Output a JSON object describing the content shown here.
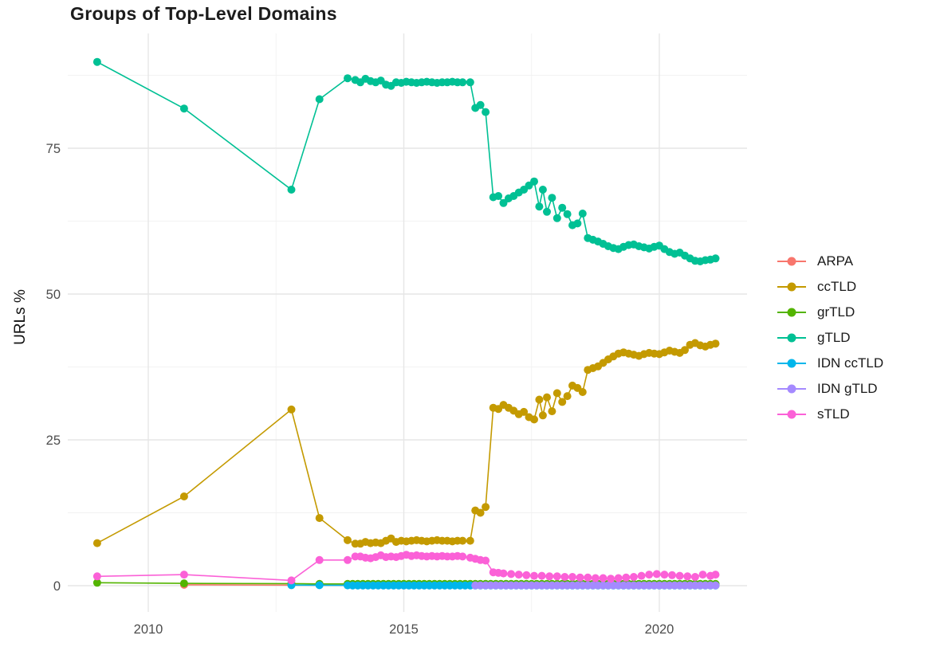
{
  "title": "Groups of Top-Level Domains",
  "colors": {
    "grid_major": "#e6e6e6",
    "grid_minor": "#f2f2f2",
    "axis_text": "#4d4d4d",
    "title_text": "#1c1c1c"
  },
  "chart_data": {
    "type": "line",
    "title": "Groups of Top-Level Domains",
    "xlabel": "",
    "ylabel": "URLs %",
    "x_ticks": [
      2010,
      2015,
      2020
    ],
    "x_minor_ticks": [
      2012.5,
      2017.5
    ],
    "y_ticks": [
      0,
      25,
      50,
      75
    ],
    "y_minor_ticks": [
      12.5,
      37.5,
      62.5,
      87.5
    ],
    "xlim": [
      2008.4,
      2021.7
    ],
    "ylim": [
      -4.6,
      94.6
    ],
    "grid": true,
    "legend_position": "right",
    "series": [
      {
        "name": "ARPA",
        "color": "#F8766D",
        "points": [
          [
            2010.7,
            0.15
          ],
          [
            2012.8,
            0.1
          ]
        ],
        "fill": {
          "from": 2014.0,
          "to": 2021.1,
          "step": 0.1,
          "value": 0.05
        }
      },
      {
        "name": "ccTLD",
        "color": "#C49A00",
        "points": [
          [
            2009.0,
            7.3
          ],
          [
            2010.7,
            15.3
          ],
          [
            2012.8,
            30.2
          ],
          [
            2013.35,
            11.6
          ],
          [
            2013.9,
            7.8
          ],
          [
            2014.05,
            7.2
          ],
          [
            2014.15,
            7.2
          ],
          [
            2014.25,
            7.5
          ],
          [
            2014.35,
            7.3
          ],
          [
            2014.45,
            7.4
          ],
          [
            2014.55,
            7.3
          ],
          [
            2014.65,
            7.7
          ],
          [
            2014.75,
            8.1
          ],
          [
            2014.85,
            7.5
          ],
          [
            2014.95,
            7.7
          ],
          [
            2015.05,
            7.6
          ],
          [
            2015.15,
            7.7
          ],
          [
            2015.25,
            7.8
          ],
          [
            2015.35,
            7.7
          ],
          [
            2015.45,
            7.6
          ],
          [
            2015.55,
            7.7
          ],
          [
            2015.65,
            7.8
          ],
          [
            2015.75,
            7.7
          ],
          [
            2015.85,
            7.7
          ],
          [
            2015.95,
            7.6
          ],
          [
            2016.05,
            7.7
          ],
          [
            2016.15,
            7.7
          ],
          [
            2016.3,
            7.7
          ],
          [
            2016.4,
            12.9
          ],
          [
            2016.5,
            12.5
          ],
          [
            2016.6,
            13.5
          ],
          [
            2016.75,
            30.5
          ],
          [
            2016.85,
            30.3
          ],
          [
            2016.95,
            31.0
          ],
          [
            2017.05,
            30.5
          ],
          [
            2017.15,
            30.0
          ],
          [
            2017.25,
            29.4
          ],
          [
            2017.35,
            29.8
          ],
          [
            2017.45,
            28.9
          ],
          [
            2017.55,
            28.5
          ],
          [
            2017.65,
            31.9
          ],
          [
            2017.72,
            29.2
          ],
          [
            2017.8,
            32.3
          ],
          [
            2017.9,
            29.9
          ],
          [
            2018.0,
            33.0
          ],
          [
            2018.1,
            31.5
          ],
          [
            2018.2,
            32.5
          ],
          [
            2018.3,
            34.3
          ],
          [
            2018.4,
            33.9
          ],
          [
            2018.5,
            33.2
          ],
          [
            2018.6,
            37.0
          ],
          [
            2018.7,
            37.3
          ],
          [
            2018.8,
            37.6
          ],
          [
            2018.9,
            38.2
          ],
          [
            2019.0,
            38.8
          ],
          [
            2019.1,
            39.3
          ],
          [
            2019.2,
            39.8
          ],
          [
            2019.3,
            40.0
          ],
          [
            2019.4,
            39.8
          ],
          [
            2019.5,
            39.6
          ],
          [
            2019.6,
            39.4
          ],
          [
            2019.7,
            39.7
          ],
          [
            2019.8,
            39.9
          ],
          [
            2019.9,
            39.8
          ],
          [
            2020.0,
            39.7
          ],
          [
            2020.1,
            40.0
          ],
          [
            2020.2,
            40.3
          ],
          [
            2020.3,
            40.1
          ],
          [
            2020.4,
            39.9
          ],
          [
            2020.5,
            40.4
          ],
          [
            2020.6,
            41.3
          ],
          [
            2020.7,
            41.6
          ],
          [
            2020.8,
            41.2
          ],
          [
            2020.9,
            41.0
          ],
          [
            2021.0,
            41.3
          ],
          [
            2021.1,
            41.5
          ]
        ]
      },
      {
        "name": "grTLD",
        "color": "#53B400",
        "points": [
          [
            2009.0,
            0.5
          ],
          [
            2010.7,
            0.4
          ],
          [
            2012.8,
            0.35
          ],
          [
            2013.35,
            0.3
          ],
          [
            2013.9,
            0.3
          ]
        ],
        "fill": {
          "from": 2014.0,
          "to": 2021.1,
          "step": 0.1,
          "value": 0.3
        }
      },
      {
        "name": "gTLD",
        "color": "#00C094",
        "points": [
          [
            2009.0,
            89.8
          ],
          [
            2010.7,
            81.8
          ],
          [
            2012.8,
            67.9
          ],
          [
            2013.35,
            83.4
          ],
          [
            2013.9,
            87.0
          ],
          [
            2014.05,
            86.7
          ],
          [
            2014.15,
            86.3
          ],
          [
            2014.25,
            86.9
          ],
          [
            2014.35,
            86.5
          ],
          [
            2014.45,
            86.3
          ],
          [
            2014.55,
            86.6
          ],
          [
            2014.65,
            85.9
          ],
          [
            2014.75,
            85.7
          ],
          [
            2014.85,
            86.3
          ],
          [
            2014.95,
            86.2
          ],
          [
            2015.05,
            86.4
          ],
          [
            2015.15,
            86.3
          ],
          [
            2015.25,
            86.2
          ],
          [
            2015.35,
            86.3
          ],
          [
            2015.45,
            86.4
          ],
          [
            2015.55,
            86.3
          ],
          [
            2015.65,
            86.2
          ],
          [
            2015.75,
            86.3
          ],
          [
            2015.85,
            86.3
          ],
          [
            2015.95,
            86.4
          ],
          [
            2016.05,
            86.3
          ],
          [
            2016.15,
            86.3
          ],
          [
            2016.3,
            86.3
          ],
          [
            2016.4,
            81.9
          ],
          [
            2016.5,
            82.4
          ],
          [
            2016.6,
            81.2
          ],
          [
            2016.75,
            66.6
          ],
          [
            2016.85,
            66.8
          ],
          [
            2016.95,
            65.6
          ],
          [
            2017.05,
            66.4
          ],
          [
            2017.15,
            66.8
          ],
          [
            2017.25,
            67.4
          ],
          [
            2017.35,
            67.9
          ],
          [
            2017.45,
            68.6
          ],
          [
            2017.55,
            69.3
          ],
          [
            2017.65,
            65.0
          ],
          [
            2017.72,
            67.9
          ],
          [
            2017.8,
            64.1
          ],
          [
            2017.9,
            66.5
          ],
          [
            2018.0,
            63.0
          ],
          [
            2018.1,
            64.8
          ],
          [
            2018.2,
            63.7
          ],
          [
            2018.3,
            61.8
          ],
          [
            2018.4,
            62.1
          ],
          [
            2018.5,
            63.8
          ],
          [
            2018.6,
            59.6
          ],
          [
            2018.7,
            59.3
          ],
          [
            2018.8,
            59.0
          ],
          [
            2018.9,
            58.6
          ],
          [
            2019.0,
            58.2
          ],
          [
            2019.1,
            57.9
          ],
          [
            2019.2,
            57.7
          ],
          [
            2019.3,
            58.1
          ],
          [
            2019.4,
            58.4
          ],
          [
            2019.5,
            58.5
          ],
          [
            2019.6,
            58.2
          ],
          [
            2019.7,
            58.0
          ],
          [
            2019.8,
            57.8
          ],
          [
            2019.9,
            58.1
          ],
          [
            2020.0,
            58.3
          ],
          [
            2020.1,
            57.7
          ],
          [
            2020.2,
            57.2
          ],
          [
            2020.3,
            56.9
          ],
          [
            2020.4,
            57.1
          ],
          [
            2020.5,
            56.6
          ],
          [
            2020.6,
            56.1
          ],
          [
            2020.7,
            55.7
          ],
          [
            2020.8,
            55.6
          ],
          [
            2020.9,
            55.8
          ],
          [
            2021.0,
            55.9
          ],
          [
            2021.1,
            56.1
          ]
        ]
      },
      {
        "name": "IDN ccTLD",
        "color": "#00B6EB",
        "points": [
          [
            2012.8,
            0.1
          ],
          [
            2013.35,
            0.08
          ],
          [
            2013.9,
            0.06
          ]
        ],
        "fill": {
          "from": 2014.0,
          "to": 2021.1,
          "step": 0.1,
          "value": 0.04
        }
      },
      {
        "name": "IDN gTLD",
        "color": "#A58AFF",
        "points": [],
        "fill": {
          "from": 2016.4,
          "to": 2021.1,
          "step": 0.1,
          "value": 0.05
        }
      },
      {
        "name": "sTLD",
        "color": "#FB61D7",
        "points": [
          [
            2009.0,
            1.6
          ],
          [
            2010.7,
            1.9
          ],
          [
            2012.8,
            0.9
          ],
          [
            2013.35,
            4.4
          ],
          [
            2013.9,
            4.4
          ],
          [
            2014.05,
            5.0
          ],
          [
            2014.15,
            5.0
          ],
          [
            2014.25,
            4.8
          ],
          [
            2014.35,
            4.7
          ],
          [
            2014.45,
            4.9
          ],
          [
            2014.55,
            5.2
          ],
          [
            2014.65,
            4.9
          ],
          [
            2014.75,
            5.0
          ],
          [
            2014.85,
            4.9
          ],
          [
            2014.95,
            5.1
          ],
          [
            2015.05,
            5.3
          ],
          [
            2015.15,
            5.1
          ],
          [
            2015.25,
            5.2
          ],
          [
            2015.35,
            5.1
          ],
          [
            2015.45,
            5.0
          ],
          [
            2015.55,
            5.1
          ],
          [
            2015.65,
            5.0
          ],
          [
            2015.75,
            5.1
          ],
          [
            2015.85,
            5.0
          ],
          [
            2015.95,
            5.0
          ],
          [
            2016.05,
            5.1
          ],
          [
            2016.15,
            5.0
          ],
          [
            2016.3,
            4.8
          ],
          [
            2016.4,
            4.6
          ],
          [
            2016.5,
            4.4
          ],
          [
            2016.6,
            4.3
          ],
          [
            2016.75,
            2.3
          ],
          [
            2016.85,
            2.2
          ],
          [
            2016.95,
            2.1
          ],
          [
            2017.1,
            2.0
          ],
          [
            2017.25,
            1.9
          ],
          [
            2017.4,
            1.8
          ],
          [
            2017.55,
            1.7
          ],
          [
            2017.7,
            1.7
          ],
          [
            2017.85,
            1.6
          ],
          [
            2018.0,
            1.6
          ],
          [
            2018.15,
            1.5
          ],
          [
            2018.3,
            1.5
          ],
          [
            2018.45,
            1.4
          ],
          [
            2018.6,
            1.4
          ],
          [
            2018.75,
            1.3
          ],
          [
            2018.9,
            1.3
          ],
          [
            2019.05,
            1.2
          ],
          [
            2019.2,
            1.3
          ],
          [
            2019.35,
            1.4
          ],
          [
            2019.5,
            1.5
          ],
          [
            2019.65,
            1.7
          ],
          [
            2019.8,
            1.9
          ],
          [
            2019.95,
            2.0
          ],
          [
            2020.1,
            1.9
          ],
          [
            2020.25,
            1.8
          ],
          [
            2020.4,
            1.7
          ],
          [
            2020.55,
            1.6
          ],
          [
            2020.7,
            1.5
          ],
          [
            2020.85,
            1.9
          ],
          [
            2021.0,
            1.7
          ],
          [
            2021.1,
            1.9
          ]
        ]
      }
    ]
  }
}
